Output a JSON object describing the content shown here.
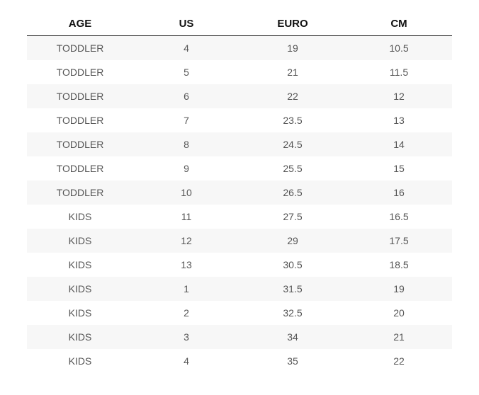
{
  "table": {
    "header": [
      "AGE",
      "US",
      "EURO",
      "CM"
    ],
    "rows": [
      [
        "TODDLER",
        "4",
        "19",
        "10.5"
      ],
      [
        "TODDLER",
        "5",
        "21",
        "11.5"
      ],
      [
        "TODDLER",
        "6",
        "22",
        "12"
      ],
      [
        "TODDLER",
        "7",
        "23.5",
        "13"
      ],
      [
        "TODDLER",
        "8",
        "24.5",
        "14"
      ],
      [
        "TODDLER",
        "9",
        "25.5",
        "15"
      ],
      [
        "TODDLER",
        "10",
        "26.5",
        "16"
      ],
      [
        "KIDS",
        "11",
        "27.5",
        "16.5"
      ],
      [
        "KIDS",
        "12",
        "29",
        "17.5"
      ],
      [
        "KIDS",
        "13",
        "30.5",
        "18.5"
      ],
      [
        "KIDS",
        "1",
        "31.5",
        "19"
      ],
      [
        "KIDS",
        "2",
        "32.5",
        "20"
      ],
      [
        "KIDS",
        "3",
        "34",
        "21"
      ],
      [
        "KIDS",
        "4",
        "35",
        "22"
      ]
    ]
  }
}
